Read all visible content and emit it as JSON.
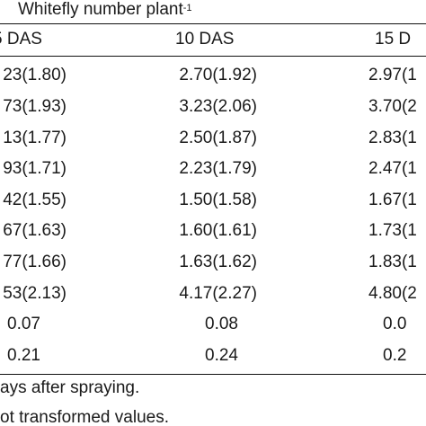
{
  "header": {
    "title": "Whitefly number plant",
    "title_superscript": "-1"
  },
  "columns": [
    "5 DAS",
    "10 DAS",
    "15 D"
  ],
  "rows": [
    [
      "23(1.80)",
      "2.70(1.92)",
      "2.97(1"
    ],
    [
      "73(1.93)",
      "3.23(2.06)",
      "3.70(2"
    ],
    [
      "13(1.77)",
      "2.50(1.87)",
      "2.83(1"
    ],
    [
      "93(1.71)",
      "2.23(1.79)",
      "2.47(1"
    ],
    [
      "42(1.55)",
      "1.50(1.58)",
      "1.67(1"
    ],
    [
      "67(1.63)",
      "1.60(1.61)",
      "1.73(1"
    ],
    [
      "77(1.66)",
      "1.63(1.62)",
      "1.83(1"
    ],
    [
      "53(2.13)",
      "4.17(2.27)",
      "4.80(2"
    ],
    [
      "0.07",
      "0.08",
      "0.0"
    ],
    [
      "0.21",
      "0.24",
      "0.2"
    ]
  ],
  "footnotes": [
    "ays after spraying.",
    "ot transformed values."
  ]
}
